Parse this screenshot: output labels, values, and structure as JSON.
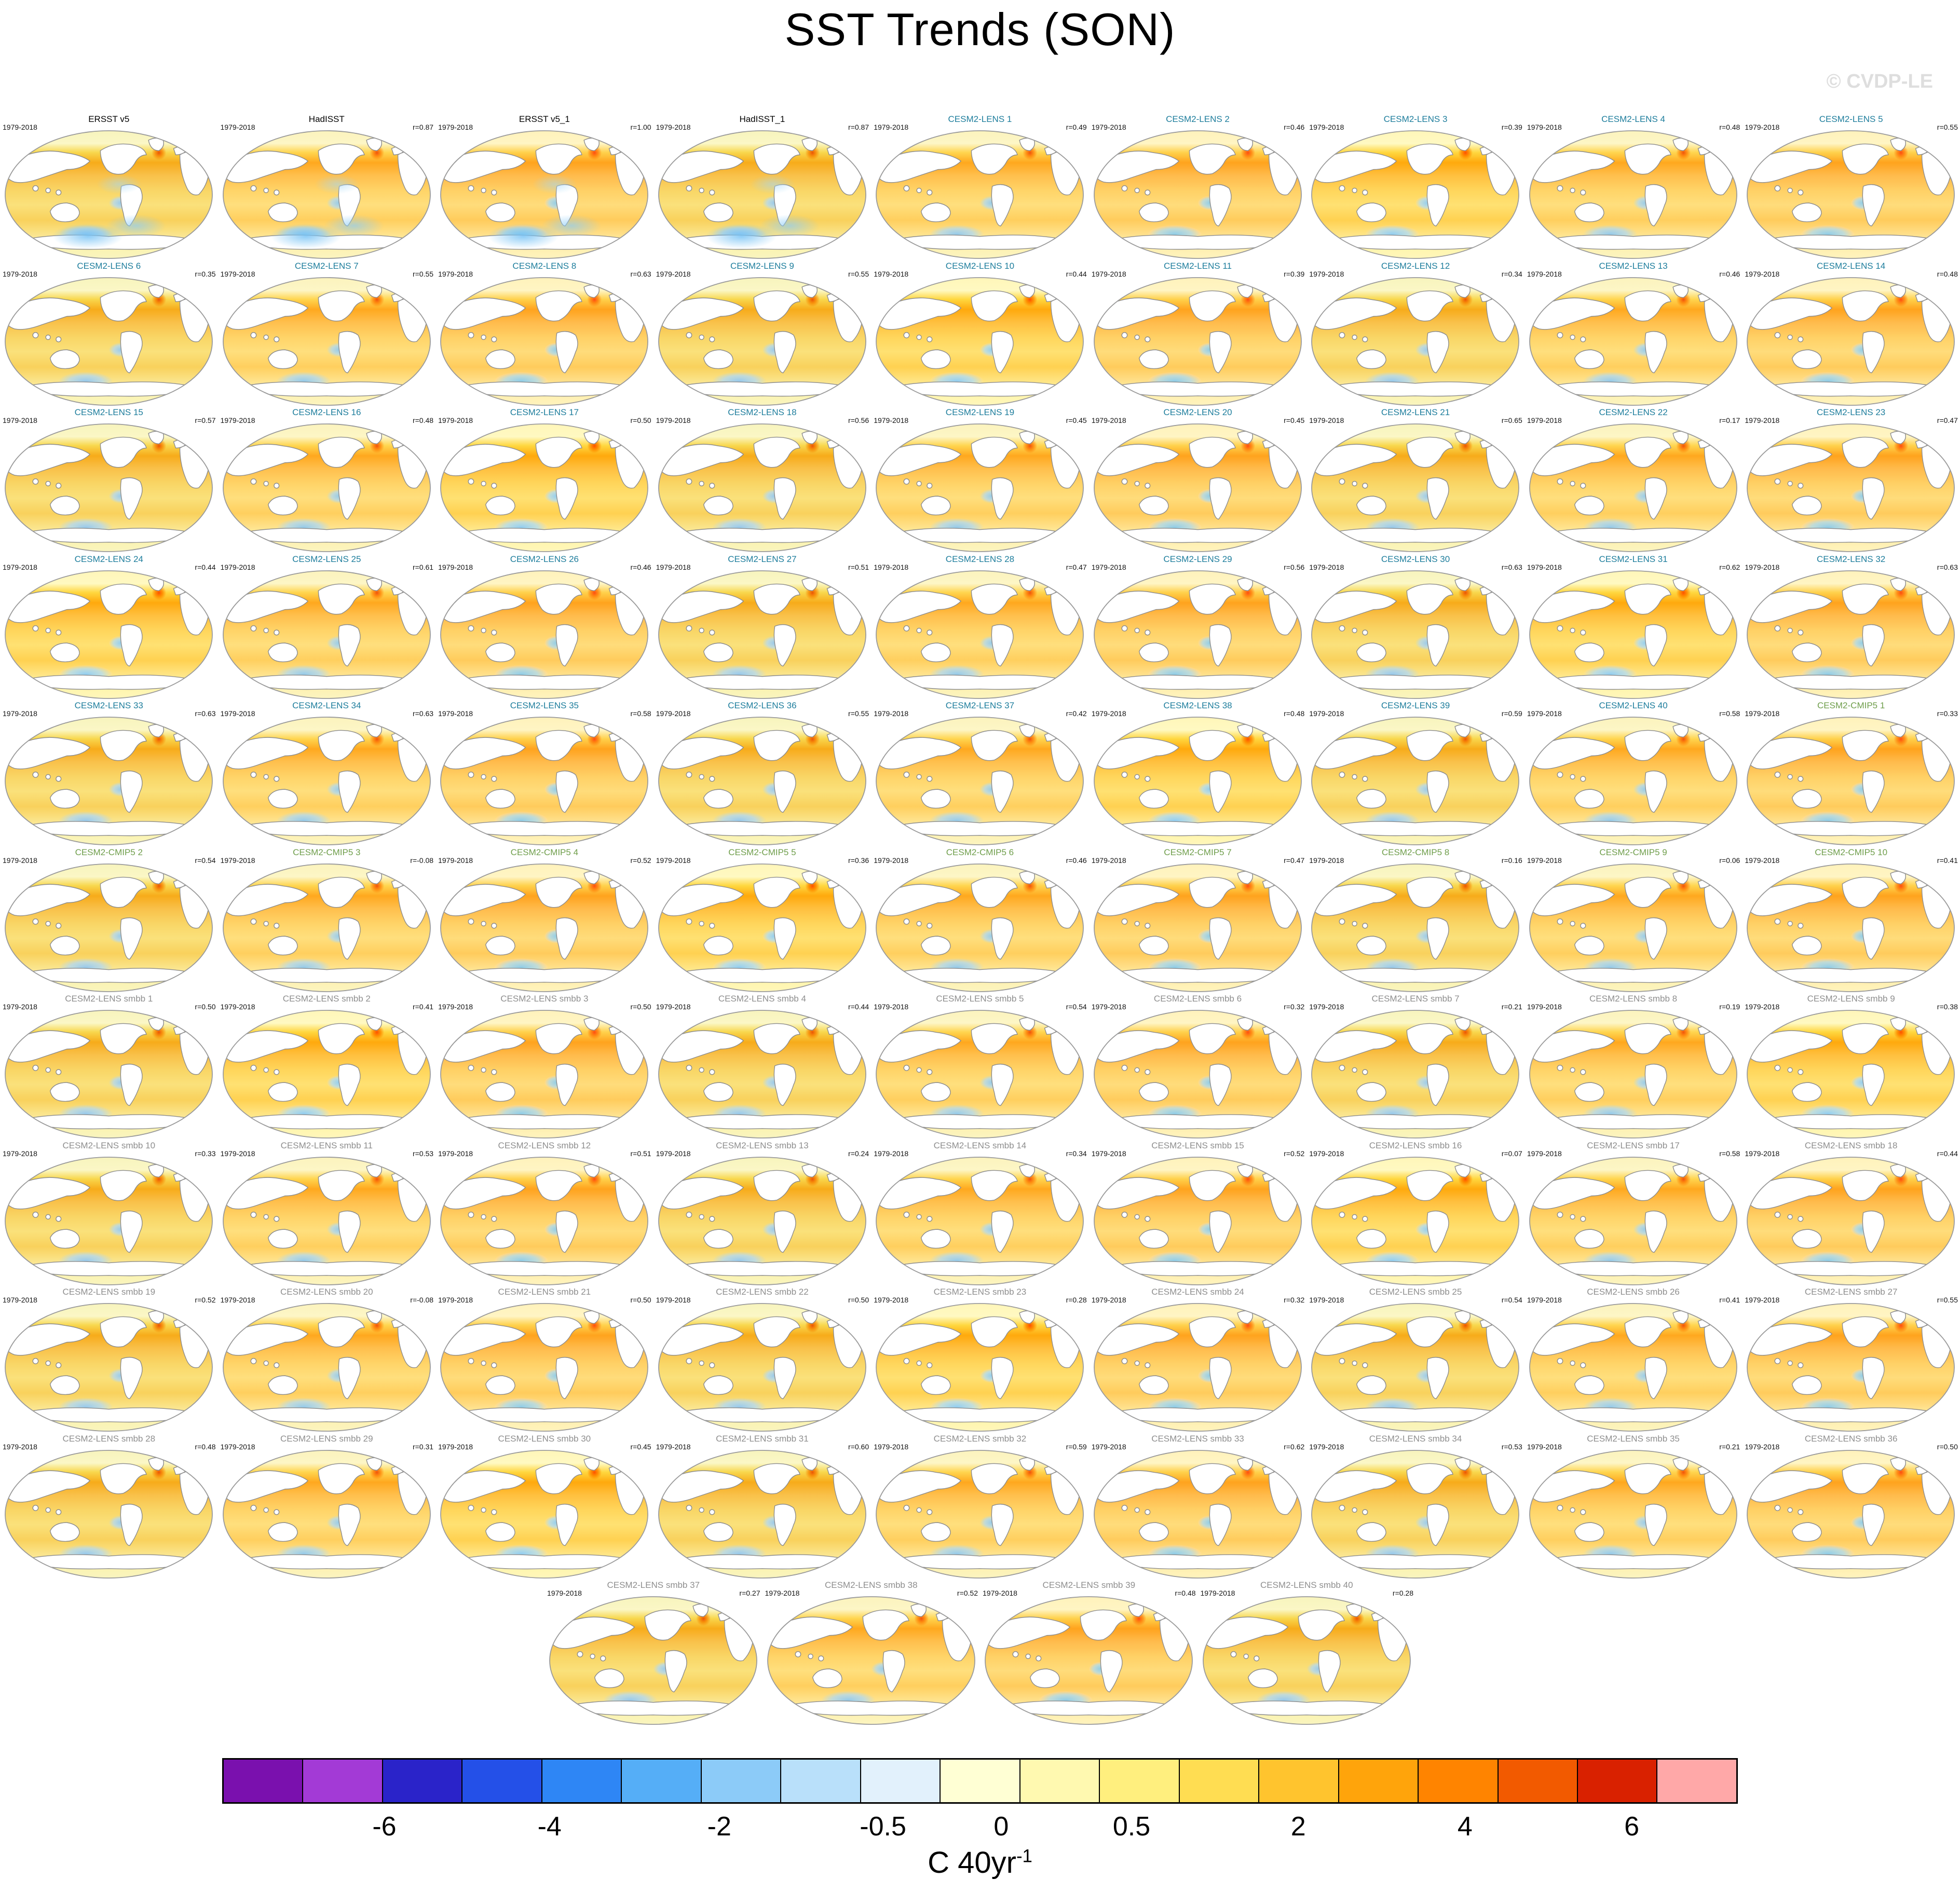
{
  "watermark": "© CVDP-LE",
  "chart_data": {
    "type": "heatmap",
    "title": "SST Trends (SON)",
    "description_visible": "Grid of 94 global SST trend maps, 1979-2018, with pattern correlation r shown per panel",
    "panels": [
      {
        "title": "ERSST v5",
        "years": "1979-2018",
        "r": "",
        "group": "obs"
      },
      {
        "title": "HadISST",
        "years": "1979-2018",
        "r": "r=0.87",
        "group": "obs"
      },
      {
        "title": "ERSST v5_1",
        "years": "1979-2018",
        "r": "r=1.00",
        "group": "obs"
      },
      {
        "title": "HadISST_1",
        "years": "1979-2018",
        "r": "r=0.87",
        "group": "obs"
      },
      {
        "title": "CESM2-LENS 1",
        "years": "1979-2018",
        "r": "r=0.49",
        "group": "lens"
      },
      {
        "title": "CESM2-LENS 2",
        "years": "1979-2018",
        "r": "r=0.46",
        "group": "lens"
      },
      {
        "title": "CESM2-LENS 3",
        "years": "1979-2018",
        "r": "r=0.39",
        "group": "lens"
      },
      {
        "title": "CESM2-LENS 4",
        "years": "1979-2018",
        "r": "r=0.48",
        "group": "lens"
      },
      {
        "title": "CESM2-LENS 5",
        "years": "1979-2018",
        "r": "r=0.55",
        "group": "lens"
      },
      {
        "title": "CESM2-LENS 6",
        "years": "1979-2018",
        "r": "r=0.35",
        "group": "lens"
      },
      {
        "title": "CESM2-LENS 7",
        "years": "1979-2018",
        "r": "r=0.55",
        "group": "lens"
      },
      {
        "title": "CESM2-LENS 8",
        "years": "1979-2018",
        "r": "r=0.63",
        "group": "lens"
      },
      {
        "title": "CESM2-LENS 9",
        "years": "1979-2018",
        "r": "r=0.55",
        "group": "lens"
      },
      {
        "title": "CESM2-LENS 10",
        "years": "1979-2018",
        "r": "r=0.44",
        "group": "lens"
      },
      {
        "title": "CESM2-LENS 11",
        "years": "1979-2018",
        "r": "r=0.39",
        "group": "lens"
      },
      {
        "title": "CESM2-LENS 12",
        "years": "1979-2018",
        "r": "r=0.34",
        "group": "lens"
      },
      {
        "title": "CESM2-LENS 13",
        "years": "1979-2018",
        "r": "r=0.46",
        "group": "lens"
      },
      {
        "title": "CESM2-LENS 14",
        "years": "1979-2018",
        "r": "r=0.48",
        "group": "lens"
      },
      {
        "title": "CESM2-LENS 15",
        "years": "1979-2018",
        "r": "r=0.57",
        "group": "lens"
      },
      {
        "title": "CESM2-LENS 16",
        "years": "1979-2018",
        "r": "r=0.48",
        "group": "lens"
      },
      {
        "title": "CESM2-LENS 17",
        "years": "1979-2018",
        "r": "r=0.50",
        "group": "lens"
      },
      {
        "title": "CESM2-LENS 18",
        "years": "1979-2018",
        "r": "r=0.56",
        "group": "lens"
      },
      {
        "title": "CESM2-LENS 19",
        "years": "1979-2018",
        "r": "r=0.45",
        "group": "lens"
      },
      {
        "title": "CESM2-LENS 20",
        "years": "1979-2018",
        "r": "r=0.45",
        "group": "lens"
      },
      {
        "title": "CESM2-LENS 21",
        "years": "1979-2018",
        "r": "r=0.65",
        "group": "lens"
      },
      {
        "title": "CESM2-LENS 22",
        "years": "1979-2018",
        "r": "r=0.17",
        "group": "lens"
      },
      {
        "title": "CESM2-LENS 23",
        "years": "1979-2018",
        "r": "r=0.47",
        "group": "lens"
      },
      {
        "title": "CESM2-LENS 24",
        "years": "1979-2018",
        "r": "r=0.44",
        "group": "lens"
      },
      {
        "title": "CESM2-LENS 25",
        "years": "1979-2018",
        "r": "r=0.61",
        "group": "lens"
      },
      {
        "title": "CESM2-LENS 26",
        "years": "1979-2018",
        "r": "r=0.46",
        "group": "lens"
      },
      {
        "title": "CESM2-LENS 27",
        "years": "1979-2018",
        "r": "r=0.51",
        "group": "lens"
      },
      {
        "title": "CESM2-LENS 28",
        "years": "1979-2018",
        "r": "r=0.47",
        "group": "lens"
      },
      {
        "title": "CESM2-LENS 29",
        "years": "1979-2018",
        "r": "r=0.56",
        "group": "lens"
      },
      {
        "title": "CESM2-LENS 30",
        "years": "1979-2018",
        "r": "r=0.63",
        "group": "lens"
      },
      {
        "title": "CESM2-LENS 31",
        "years": "1979-2018",
        "r": "r=0.62",
        "group": "lens"
      },
      {
        "title": "CESM2-LENS 32",
        "years": "1979-2018",
        "r": "r=0.63",
        "group": "lens"
      },
      {
        "title": "CESM2-LENS 33",
        "years": "1979-2018",
        "r": "r=0.63",
        "group": "lens"
      },
      {
        "title": "CESM2-LENS 34",
        "years": "1979-2018",
        "r": "r=0.63",
        "group": "lens"
      },
      {
        "title": "CESM2-LENS 35",
        "years": "1979-2018",
        "r": "r=0.58",
        "group": "lens"
      },
      {
        "title": "CESM2-LENS 36",
        "years": "1979-2018",
        "r": "r=0.55",
        "group": "lens"
      },
      {
        "title": "CESM2-LENS 37",
        "years": "1979-2018",
        "r": "r=0.42",
        "group": "lens"
      },
      {
        "title": "CESM2-LENS 38",
        "years": "1979-2018",
        "r": "r=0.48",
        "group": "lens"
      },
      {
        "title": "CESM2-LENS 39",
        "years": "1979-2018",
        "r": "r=0.59",
        "group": "lens"
      },
      {
        "title": "CESM2-LENS 40",
        "years": "1979-2018",
        "r": "r=0.58",
        "group": "lens"
      },
      {
        "title": "CESM2-CMIP5 1",
        "years": "1979-2018",
        "r": "r=0.33",
        "group": "cmip5"
      },
      {
        "title": "CESM2-CMIP5 2",
        "years": "1979-2018",
        "r": "r=0.54",
        "group": "cmip5"
      },
      {
        "title": "CESM2-CMIP5 3",
        "years": "1979-2018",
        "r": "r=-0.08",
        "group": "cmip5"
      },
      {
        "title": "CESM2-CMIP5 4",
        "years": "1979-2018",
        "r": "r=0.52",
        "group": "cmip5"
      },
      {
        "title": "CESM2-CMIP5 5",
        "years": "1979-2018",
        "r": "r=0.36",
        "group": "cmip5"
      },
      {
        "title": "CESM2-CMIP5 6",
        "years": "1979-2018",
        "r": "r=0.46",
        "group": "cmip5"
      },
      {
        "title": "CESM2-CMIP5 7",
        "years": "1979-2018",
        "r": "r=0.47",
        "group": "cmip5"
      },
      {
        "title": "CESM2-CMIP5 8",
        "years": "1979-2018",
        "r": "r=0.16",
        "group": "cmip5"
      },
      {
        "title": "CESM2-CMIP5 9",
        "years": "1979-2018",
        "r": "r=0.06",
        "group": "cmip5"
      },
      {
        "title": "CESM2-CMIP5 10",
        "years": "1979-2018",
        "r": "r=0.41",
        "group": "cmip5"
      },
      {
        "title": "CESM2-LENS smbb 1",
        "years": "1979-2018",
        "r": "r=0.50",
        "group": "smbb"
      },
      {
        "title": "CESM2-LENS smbb 2",
        "years": "1979-2018",
        "r": "r=0.41",
        "group": "smbb"
      },
      {
        "title": "CESM2-LENS smbb 3",
        "years": "1979-2018",
        "r": "r=0.50",
        "group": "smbb"
      },
      {
        "title": "CESM2-LENS smbb 4",
        "years": "1979-2018",
        "r": "r=0.44",
        "group": "smbb"
      },
      {
        "title": "CESM2-LENS smbb 5",
        "years": "1979-2018",
        "r": "r=0.54",
        "group": "smbb"
      },
      {
        "title": "CESM2-LENS smbb 6",
        "years": "1979-2018",
        "r": "r=0.32",
        "group": "smbb"
      },
      {
        "title": "CESM2-LENS smbb 7",
        "years": "1979-2018",
        "r": "r=0.21",
        "group": "smbb"
      },
      {
        "title": "CESM2-LENS smbb 8",
        "years": "1979-2018",
        "r": "r=0.19",
        "group": "smbb"
      },
      {
        "title": "CESM2-LENS smbb 9",
        "years": "1979-2018",
        "r": "r=0.38",
        "group": "smbb"
      },
      {
        "title": "CESM2-LENS smbb 10",
        "years": "1979-2018",
        "r": "r=0.33",
        "group": "smbb"
      },
      {
        "title": "CESM2-LENS smbb 11",
        "years": "1979-2018",
        "r": "r=0.53",
        "group": "smbb"
      },
      {
        "title": "CESM2-LENS smbb 12",
        "years": "1979-2018",
        "r": "r=0.51",
        "group": "smbb"
      },
      {
        "title": "CESM2-LENS smbb 13",
        "years": "1979-2018",
        "r": "r=0.24",
        "group": "smbb"
      },
      {
        "title": "CESM2-LENS smbb 14",
        "years": "1979-2018",
        "r": "r=0.34",
        "group": "smbb"
      },
      {
        "title": "CESM2-LENS smbb 15",
        "years": "1979-2018",
        "r": "r=0.52",
        "group": "smbb"
      },
      {
        "title": "CESM2-LENS smbb 16",
        "years": "1979-2018",
        "r": "r=0.07",
        "group": "smbb"
      },
      {
        "title": "CESM2-LENS smbb 17",
        "years": "1979-2018",
        "r": "r=0.58",
        "group": "smbb"
      },
      {
        "title": "CESM2-LENS smbb 18",
        "years": "1979-2018",
        "r": "r=0.44",
        "group": "smbb"
      },
      {
        "title": "CESM2-LENS smbb 19",
        "years": "1979-2018",
        "r": "r=0.52",
        "group": "smbb"
      },
      {
        "title": "CESM2-LENS smbb 20",
        "years": "1979-2018",
        "r": "r=-0.08",
        "group": "smbb"
      },
      {
        "title": "CESM2-LENS smbb 21",
        "years": "1979-2018",
        "r": "r=0.50",
        "group": "smbb"
      },
      {
        "title": "CESM2-LENS smbb 22",
        "years": "1979-2018",
        "r": "r=0.50",
        "group": "smbb"
      },
      {
        "title": "CESM2-LENS smbb 23",
        "years": "1979-2018",
        "r": "r=0.28",
        "group": "smbb"
      },
      {
        "title": "CESM2-LENS smbb 24",
        "years": "1979-2018",
        "r": "r=0.32",
        "group": "smbb"
      },
      {
        "title": "CESM2-LENS smbb 25",
        "years": "1979-2018",
        "r": "r=0.54",
        "group": "smbb"
      },
      {
        "title": "CESM2-LENS smbb 26",
        "years": "1979-2018",
        "r": "r=0.41",
        "group": "smbb"
      },
      {
        "title": "CESM2-LENS smbb 27",
        "years": "1979-2018",
        "r": "r=0.55",
        "group": "smbb"
      },
      {
        "title": "CESM2-LENS smbb 28",
        "years": "1979-2018",
        "r": "r=0.48",
        "group": "smbb"
      },
      {
        "title": "CESM2-LENS smbb 29",
        "years": "1979-2018",
        "r": "r=0.31",
        "group": "smbb"
      },
      {
        "title": "CESM2-LENS smbb 30",
        "years": "1979-2018",
        "r": "r=0.45",
        "group": "smbb"
      },
      {
        "title": "CESM2-LENS smbb 31",
        "years": "1979-2018",
        "r": "r=0.60",
        "group": "smbb"
      },
      {
        "title": "CESM2-LENS smbb 32",
        "years": "1979-2018",
        "r": "r=0.59",
        "group": "smbb"
      },
      {
        "title": "CESM2-LENS smbb 33",
        "years": "1979-2018",
        "r": "r=0.62",
        "group": "smbb"
      },
      {
        "title": "CESM2-LENS smbb 34",
        "years": "1979-2018",
        "r": "r=0.53",
        "group": "smbb"
      },
      {
        "title": "CESM2-LENS smbb 35",
        "years": "1979-2018",
        "r": "r=0.21",
        "group": "smbb"
      },
      {
        "title": "CESM2-LENS smbb 36",
        "years": "1979-2018",
        "r": "r=0.50",
        "group": "smbb"
      },
      {
        "title": "CESM2-LENS smbb 37",
        "years": "1979-2018",
        "r": "r=0.27",
        "group": "smbb"
      },
      {
        "title": "CESM2-LENS smbb 38",
        "years": "1979-2018",
        "r": "r=0.52",
        "group": "smbb"
      },
      {
        "title": "CESM2-LENS smbb 39",
        "years": "1979-2018",
        "r": "r=0.48",
        "group": "smbb"
      },
      {
        "title": "CESM2-LENS smbb 40",
        "years": "1979-2018",
        "r": "r=0.28",
        "group": "smbb"
      }
    ],
    "colorbar": {
      "unit_label": "C 40yr",
      "unit_exponent": "-1",
      "n_segments": 19,
      "segment_colors": [
        "#7a10ae",
        "#a33ad6",
        "#2a23c9",
        "#2450e8",
        "#2e86f5",
        "#55aef7",
        "#8ccbf8",
        "#b9e0fa",
        "#e2f1fc",
        "#ffffd4",
        "#fff9b0",
        "#ffef7e",
        "#ffdd52",
        "#ffc42e",
        "#ffa40b",
        "#ff8400",
        "#f25a00",
        "#d92100",
        "#ffa8a8"
      ],
      "tick_values": [
        -6,
        -4,
        -2,
        -0.5,
        0,
        0.5,
        2,
        4,
        6
      ],
      "ticks": [
        {
          "label": "-6",
          "pct": 10.7
        },
        {
          "label": "-4",
          "pct": 21.6
        },
        {
          "label": "-2",
          "pct": 32.8
        },
        {
          "label": "-0.5",
          "pct": 43.6
        },
        {
          "label": "0",
          "pct": 51.4
        },
        {
          "label": "0.5",
          "pct": 60.0
        },
        {
          "label": "2",
          "pct": 71.0
        },
        {
          "label": "4",
          "pct": 82.0
        },
        {
          "label": "6",
          "pct": 93.0
        }
      ]
    },
    "title_colors": {
      "obs": "#000000",
      "lens": "#1d7d9c",
      "cmip5": "#6f9e4b",
      "smbb": "#8e8e8e"
    }
  }
}
